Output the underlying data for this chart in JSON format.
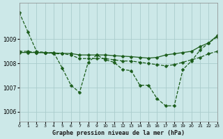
{
  "title": "Graphe pression niveau de la mer (hPa)",
  "bg_color": "#cce8e8",
  "grid_color": "#aacccc",
  "line_color": "#1a5c1a",
  "line1_x": [
    0,
    1,
    2,
    3,
    4,
    5,
    6,
    7,
    8,
    9,
    10,
    11,
    12,
    13,
    14,
    15,
    16,
    17,
    18,
    19,
    20,
    21,
    22,
    23
  ],
  "line1_y": [
    1010.1,
    1009.3,
    1008.5,
    1008.45,
    1008.45,
    1007.8,
    1007.1,
    1006.8,
    1008.05,
    1008.35,
    1008.15,
    1008.05,
    1007.75,
    1007.7,
    1007.1,
    1007.1,
    1006.55,
    1006.25,
    1006.25,
    1007.75,
    1008.1,
    1008.55,
    1008.85,
    1009.1
  ],
  "line2_x": [
    0,
    1,
    2,
    3,
    4,
    5,
    6,
    7,
    8,
    9,
    10,
    11,
    12,
    13,
    14,
    15,
    16,
    17,
    18,
    19,
    20,
    21,
    22,
    23
  ],
  "line2_y": [
    1008.5,
    1008.5,
    1008.45,
    1008.45,
    1008.4,
    1008.4,
    1008.35,
    1008.2,
    1008.2,
    1008.2,
    1008.2,
    1008.15,
    1008.1,
    1008.1,
    1008.05,
    1008.0,
    1007.95,
    1007.9,
    1007.95,
    1008.05,
    1008.15,
    1008.25,
    1008.4,
    1008.5
  ],
  "line3_x": [
    0,
    1,
    2,
    3,
    4,
    5,
    6,
    7,
    8,
    9,
    10,
    11,
    12,
    13,
    14,
    15,
    16,
    17,
    18,
    19,
    20,
    21,
    22,
    23
  ],
  "line3_y": [
    1008.45,
    1008.45,
    1008.45,
    1008.44,
    1008.43,
    1008.42,
    1008.41,
    1008.35,
    1008.35,
    1008.35,
    1008.35,
    1008.32,
    1008.3,
    1008.28,
    1008.25,
    1008.22,
    1008.25,
    1008.35,
    1008.4,
    1008.45,
    1008.5,
    1008.7,
    1008.85,
    1009.15
  ],
  "xlim": [
    0,
    23
  ],
  "ylim": [
    1005.6,
    1010.5
  ],
  "yticks": [
    1006,
    1007,
    1008,
    1009
  ],
  "xticks": [
    0,
    1,
    2,
    3,
    4,
    5,
    6,
    7,
    8,
    9,
    10,
    11,
    12,
    13,
    14,
    15,
    16,
    17,
    18,
    19,
    20,
    21,
    22,
    23
  ],
  "xticklabels": [
    "0",
    "1",
    "2",
    "3",
    "4",
    "5",
    "6",
    "7",
    "8",
    "9",
    "10",
    "11",
    "12",
    "13",
    "14",
    "15",
    "16",
    "17",
    "18",
    "19",
    "20",
    "21",
    "22",
    "23"
  ]
}
